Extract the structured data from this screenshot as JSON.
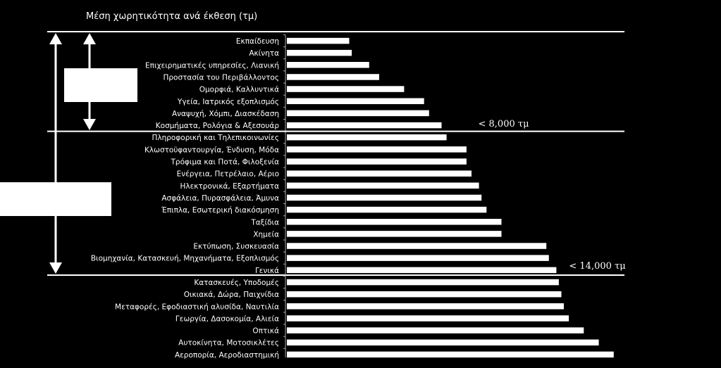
{
  "chart_data": {
    "type": "bar",
    "orientation": "horizontal",
    "title": "Μέση χωρητικότητα ανά έκθεση (τμ)",
    "categories": [
      "Εκπαίδευση",
      "Ακίνητα",
      "Επιχειρηματικές υπηρεσίες, Λιανική",
      "Προστασία του Περιβάλλοντος",
      "Ομορφιά, Καλλυντικά",
      "Υγεία, Ιατρικός εξοπλισμός",
      "Αναψυχή, Χόμπι, Διασκέδαση",
      "Κοσμήματα, Ρολόγια & Αξεσουάρ",
      "Πληροφορική και Τηλεπικοινωνίες",
      "Κλωστοϋφαντουργία, Ένδυση, Μόδα",
      "Τρόφιμα και Ποτά, Φιλοξενία",
      "Ενέργεια, Πετρέλαιο, Αέριο",
      "Ηλεκτρονικά, Εξαρτήματα",
      "Ασφάλεια, Πυρασφάλεια, Άμυνα",
      "Έπιπλα, Εσωτερική διακόσμηση",
      "Ταξίδια",
      "Χημεία",
      "Εκτύπωση, Συσκευασία",
      "Βιομηχανία, Κατασκευή, Μηχανήματα, Εξοπλισμός",
      "Γενικά",
      "Κατασκευές, Υποδομές",
      "Οικιακά, Δώρα, Παιχνίδια",
      "Μεταφορές, Εφοδιαστική αλυσίδα, Ναυτιλία",
      "Γεωργία, Δασοκομία, Αλιεία",
      "Οπτικά",
      "Αυτοκίνητα, Μοτοσικλέτες",
      "Αεροπορία, Αεροδιαστημική"
    ],
    "values": [
      2500,
      2600,
      3300,
      3700,
      4700,
      5500,
      5700,
      6200,
      6400,
      7200,
      7200,
      7400,
      7700,
      7800,
      8000,
      8600,
      8600,
      10400,
      10500,
      10800,
      10900,
      11000,
      11100,
      11300,
      11900,
      12500,
      13100
    ],
    "xlim": [
      0,
      13500
    ],
    "axis_visible": false,
    "grid": false,
    "bar_color": "#ffffff",
    "background": "#000000",
    "thresholds": [
      {
        "label": "< 8,000 τμ",
        "after_index": 7
      },
      {
        "label": "< 14,000 τμ",
        "after_index": 19
      }
    ]
  }
}
